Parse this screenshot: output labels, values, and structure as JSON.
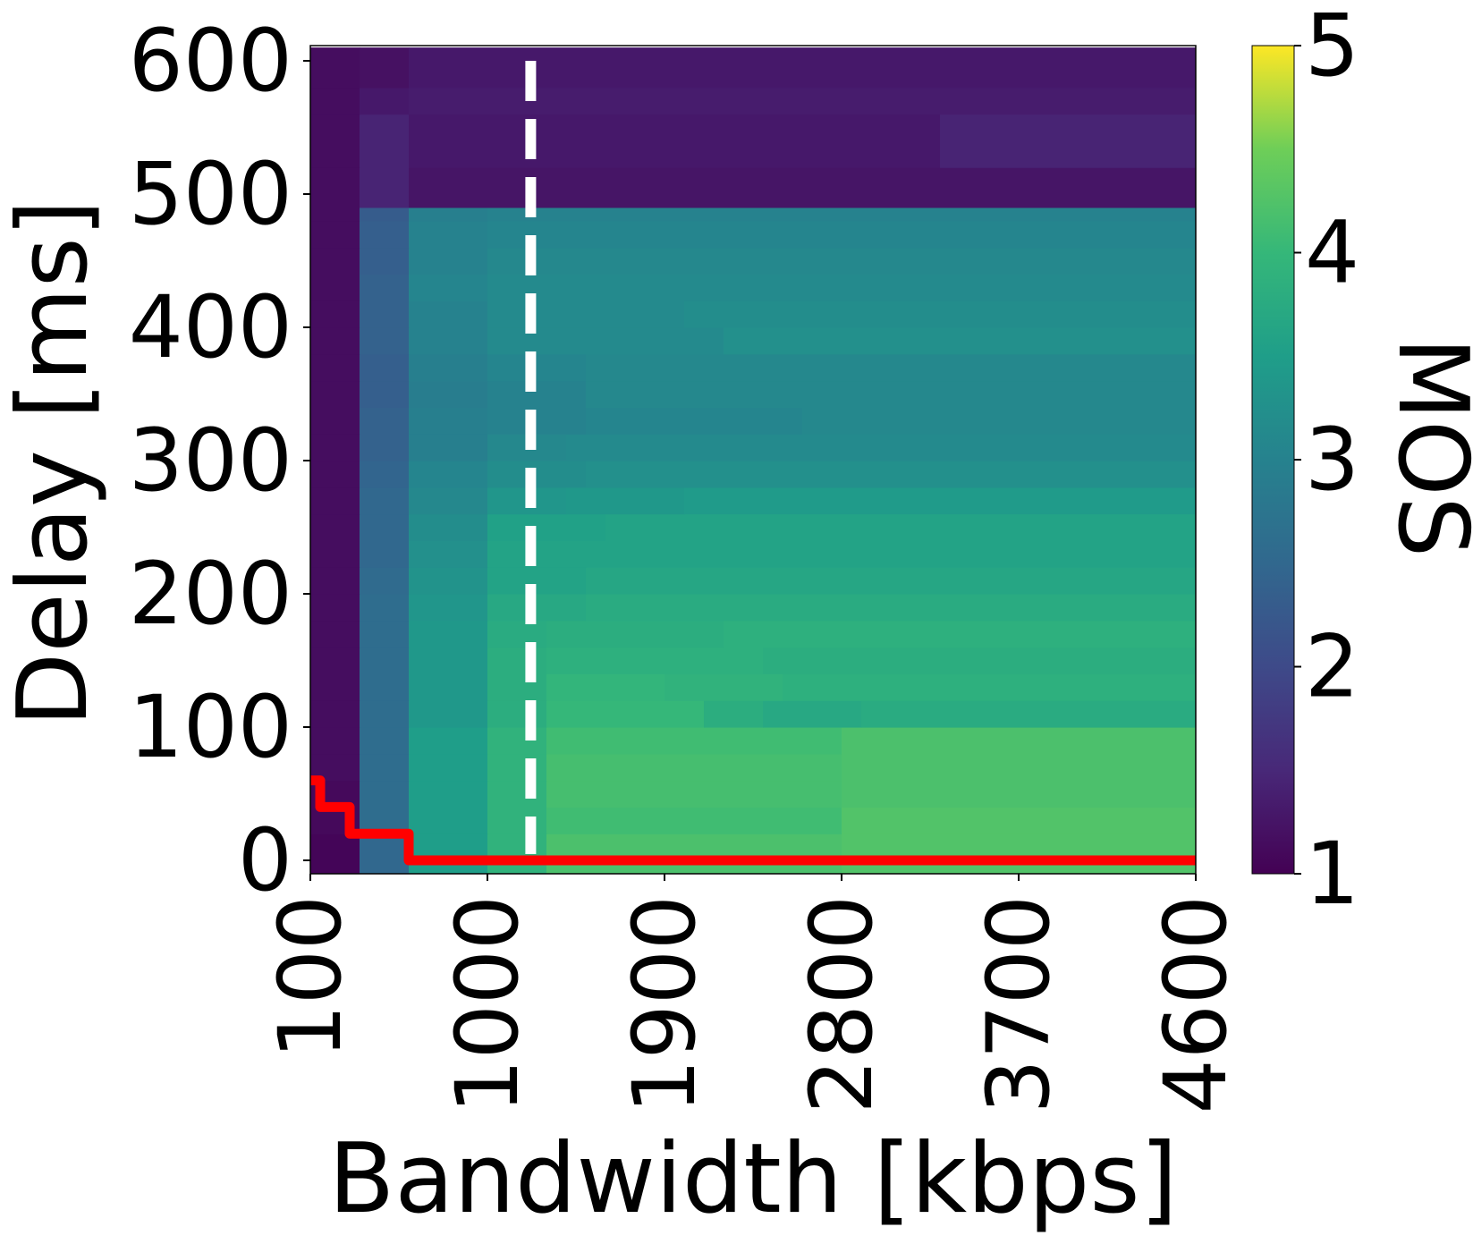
{
  "chart_data": {
    "type": "heatmap",
    "xlabel": "Bandwidth [kbps]",
    "ylabel": "Delay [ms]",
    "colorbar_label": "MOS",
    "x_ticks": [
      "100",
      "1000",
      "1900",
      "2800",
      "3700",
      "4600"
    ],
    "y_ticks": [
      "0",
      "100",
      "200",
      "300",
      "400",
      "500",
      "600"
    ],
    "colorbar_ticks": [
      "1",
      "2",
      "3",
      "4",
      "5"
    ],
    "xlim": [
      100,
      4600
    ],
    "ylim": [
      0,
      600
    ],
    "color_range": [
      1,
      5
    ],
    "colormap": "viridis",
    "grid": false,
    "rows": [
      {
        "delay": [
          0,
          20
        ],
        "segments": [
          [
            100,
            350,
            1.05
          ],
          [
            350,
            600,
            2.5
          ],
          [
            600,
            1000,
            3.5
          ],
          [
            1000,
            1300,
            3.9
          ],
          [
            1300,
            2800,
            4.2
          ],
          [
            2800,
            4600,
            4.25
          ]
        ]
      },
      {
        "delay": [
          20,
          40
        ],
        "segments": [
          [
            100,
            350,
            1.1
          ],
          [
            350,
            600,
            2.6
          ],
          [
            600,
            1000,
            3.5
          ],
          [
            1000,
            1300,
            3.9
          ],
          [
            1300,
            2800,
            4.1
          ],
          [
            2800,
            4600,
            4.25
          ]
        ]
      },
      {
        "delay": [
          40,
          60
        ],
        "segments": [
          [
            100,
            350,
            1.1
          ],
          [
            350,
            600,
            2.6
          ],
          [
            600,
            1000,
            3.5
          ],
          [
            1000,
            1300,
            3.9
          ],
          [
            1300,
            2800,
            4.15
          ],
          [
            2800,
            4600,
            4.2
          ]
        ]
      },
      {
        "delay": [
          60,
          80
        ],
        "segments": [
          [
            100,
            350,
            1.15
          ],
          [
            350,
            600,
            2.6
          ],
          [
            600,
            1000,
            3.5
          ],
          [
            1000,
            1300,
            3.9
          ],
          [
            1300,
            2800,
            4.15
          ],
          [
            2800,
            4600,
            4.2
          ]
        ]
      },
      {
        "delay": [
          80,
          100
        ],
        "segments": [
          [
            100,
            350,
            1.15
          ],
          [
            350,
            600,
            2.6
          ],
          [
            600,
            1000,
            3.5
          ],
          [
            1000,
            1300,
            3.9
          ],
          [
            1300,
            2800,
            4.1
          ],
          [
            2800,
            4600,
            4.2
          ]
        ]
      },
      {
        "delay": [
          100,
          120
        ],
        "segments": [
          [
            100,
            350,
            1.15
          ],
          [
            350,
            600,
            2.6
          ],
          [
            600,
            1000,
            3.4
          ],
          [
            1000,
            1300,
            3.8
          ],
          [
            1300,
            2100,
            4.0
          ],
          [
            2100,
            2400,
            3.8
          ],
          [
            2400,
            2900,
            3.7
          ],
          [
            2900,
            4600,
            3.75
          ]
        ]
      },
      {
        "delay": [
          120,
          140
        ],
        "segments": [
          [
            100,
            350,
            1.15
          ],
          [
            350,
            600,
            2.6
          ],
          [
            600,
            1000,
            3.4
          ],
          [
            1000,
            1300,
            3.8
          ],
          [
            1300,
            1900,
            3.95
          ],
          [
            1900,
            2500,
            3.9
          ],
          [
            2500,
            4600,
            3.85
          ]
        ]
      },
      {
        "delay": [
          140,
          160
        ],
        "segments": [
          [
            100,
            350,
            1.15
          ],
          [
            350,
            600,
            2.6
          ],
          [
            600,
            1000,
            3.4
          ],
          [
            1000,
            1300,
            3.8
          ],
          [
            1300,
            2400,
            3.85
          ],
          [
            2400,
            4600,
            3.8
          ]
        ]
      },
      {
        "delay": [
          160,
          180
        ],
        "segments": [
          [
            100,
            350,
            1.15
          ],
          [
            350,
            600,
            2.6
          ],
          [
            600,
            1000,
            3.4
          ],
          [
            1000,
            1300,
            3.75
          ],
          [
            1300,
            2200,
            3.8
          ],
          [
            2200,
            4600,
            3.85
          ]
        ]
      },
      {
        "delay": [
          180,
          200
        ],
        "segments": [
          [
            100,
            350,
            1.15
          ],
          [
            350,
            600,
            2.6
          ],
          [
            600,
            1000,
            3.35
          ],
          [
            1000,
            1500,
            3.7
          ],
          [
            1500,
            4600,
            3.75
          ]
        ]
      },
      {
        "delay": [
          200,
          220
        ],
        "segments": [
          [
            100,
            350,
            1.15
          ],
          [
            350,
            600,
            2.55
          ],
          [
            600,
            1000,
            3.3
          ],
          [
            1000,
            1500,
            3.6
          ],
          [
            1500,
            4600,
            3.65
          ]
        ]
      },
      {
        "delay": [
          220,
          240
        ],
        "segments": [
          [
            100,
            350,
            1.15
          ],
          [
            350,
            600,
            2.5
          ],
          [
            600,
            1000,
            3.25
          ],
          [
            1000,
            1500,
            3.6
          ],
          [
            1500,
            4600,
            3.6
          ]
        ]
      },
      {
        "delay": [
          240,
          260
        ],
        "segments": [
          [
            100,
            350,
            1.15
          ],
          [
            350,
            600,
            2.5
          ],
          [
            600,
            1000,
            3.2
          ],
          [
            1000,
            1600,
            3.55
          ],
          [
            1600,
            4600,
            3.6
          ]
        ]
      },
      {
        "delay": [
          260,
          280
        ],
        "segments": [
          [
            100,
            350,
            1.15
          ],
          [
            350,
            600,
            2.5
          ],
          [
            600,
            1000,
            3.1
          ],
          [
            1000,
            1400,
            3.35
          ],
          [
            1400,
            2000,
            3.4
          ],
          [
            2000,
            4600,
            3.45
          ]
        ]
      },
      {
        "delay": [
          280,
          300
        ],
        "segments": [
          [
            100,
            350,
            1.15
          ],
          [
            350,
            600,
            2.45
          ],
          [
            600,
            1000,
            3.05
          ],
          [
            1000,
            1500,
            3.2
          ],
          [
            1500,
            4600,
            3.25
          ]
        ]
      },
      {
        "delay": [
          300,
          320
        ],
        "segments": [
          [
            100,
            350,
            1.15
          ],
          [
            350,
            600,
            2.4
          ],
          [
            600,
            1000,
            2.95
          ],
          [
            1000,
            1400,
            3.1
          ],
          [
            1400,
            4600,
            3.15
          ]
        ]
      },
      {
        "delay": [
          320,
          340
        ],
        "segments": [
          [
            100,
            350,
            1.15
          ],
          [
            350,
            600,
            2.4
          ],
          [
            600,
            1000,
            2.95
          ],
          [
            1000,
            1500,
            3.0
          ],
          [
            1500,
            2600,
            3.05
          ],
          [
            2600,
            4600,
            3.1
          ]
        ]
      },
      {
        "delay": [
          340,
          360
        ],
        "segments": [
          [
            100,
            350,
            1.15
          ],
          [
            350,
            600,
            2.35
          ],
          [
            600,
            1000,
            2.9
          ],
          [
            1000,
            1500,
            3.0
          ],
          [
            1500,
            4600,
            3.1
          ]
        ]
      },
      {
        "delay": [
          360,
          380
        ],
        "segments": [
          [
            100,
            350,
            1.15
          ],
          [
            350,
            600,
            2.35
          ],
          [
            600,
            1000,
            2.95
          ],
          [
            1000,
            1500,
            3.05
          ],
          [
            1500,
            4600,
            3.1
          ]
        ]
      },
      {
        "delay": [
          380,
          400
        ],
        "segments": [
          [
            100,
            350,
            1.15
          ],
          [
            350,
            600,
            2.4
          ],
          [
            600,
            1000,
            3.0
          ],
          [
            1000,
            2200,
            3.15
          ],
          [
            2200,
            4600,
            3.25
          ]
        ]
      },
      {
        "delay": [
          400,
          420
        ],
        "segments": [
          [
            100,
            350,
            1.15
          ],
          [
            350,
            600,
            2.4
          ],
          [
            600,
            1000,
            3.0
          ],
          [
            1000,
            2000,
            3.15
          ],
          [
            2000,
            4600,
            3.2
          ]
        ]
      },
      {
        "delay": [
          420,
          440
        ],
        "segments": [
          [
            100,
            350,
            1.15
          ],
          [
            350,
            600,
            2.4
          ],
          [
            600,
            1000,
            3.05
          ],
          [
            1000,
            4600,
            3.15
          ]
        ]
      },
      {
        "delay": [
          440,
          460
        ],
        "segments": [
          [
            100,
            350,
            1.15
          ],
          [
            350,
            600,
            2.35
          ],
          [
            600,
            1000,
            3.0
          ],
          [
            1000,
            4600,
            3.1
          ]
        ]
      },
      {
        "delay": [
          460,
          480
        ],
        "segments": [
          [
            100,
            350,
            1.15
          ],
          [
            350,
            600,
            2.35
          ],
          [
            600,
            1000,
            3.0
          ],
          [
            1000,
            4600,
            3.05
          ]
        ]
      },
      {
        "delay": [
          480,
          490
        ],
        "segments": [
          [
            100,
            350,
            1.15
          ],
          [
            350,
            600,
            2.3
          ],
          [
            600,
            1000,
            2.95
          ],
          [
            1000,
            4600,
            3.0
          ]
        ]
      },
      {
        "delay": [
          490,
          520
        ],
        "segments": [
          [
            100,
            350,
            1.15
          ],
          [
            350,
            600,
            1.45
          ],
          [
            600,
            4600,
            1.25
          ]
        ]
      },
      {
        "delay": [
          520,
          560
        ],
        "segments": [
          [
            100,
            350,
            1.15
          ],
          [
            350,
            600,
            1.45
          ],
          [
            600,
            3300,
            1.3
          ],
          [
            3300,
            4600,
            1.45
          ]
        ]
      },
      {
        "delay": [
          560,
          580
        ],
        "segments": [
          [
            100,
            350,
            1.15
          ],
          [
            350,
            600,
            1.3
          ],
          [
            600,
            4600,
            1.35
          ]
        ]
      },
      {
        "delay": [
          580,
          610
        ],
        "segments": [
          [
            100,
            350,
            1.15
          ],
          [
            350,
            600,
            1.2
          ],
          [
            600,
            4600,
            1.3
          ]
        ]
      }
    ],
    "annotations": {
      "dashed_line": {
        "x": 1220,
        "color": "#ffffff"
      },
      "threshold_line": {
        "color": "#ff0000",
        "points": [
          [
            100,
            60
          ],
          [
            150,
            60
          ],
          [
            150,
            40
          ],
          [
            300,
            40
          ],
          [
            300,
            20
          ],
          [
            600,
            20
          ],
          [
            600,
            0
          ],
          [
            4600,
            0
          ]
        ]
      }
    }
  }
}
